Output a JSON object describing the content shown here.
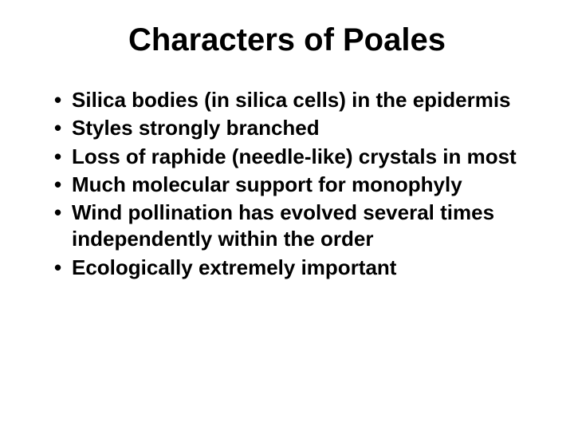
{
  "slide": {
    "title": "Characters of Poales",
    "title_fontsize": 40,
    "bullets": [
      "Silica bodies (in silica cells) in the epidermis",
      "Styles strongly branched",
      "Loss of raphide (needle-like) crystals in most",
      "Much molecular support for monophyly",
      "Wind pollination has evolved several times independently within the order",
      "Ecologically extremely important"
    ],
    "bullet_fontsize": 26,
    "bullet_line_height": 1.28,
    "text_color": "#000000",
    "background_color": "#ffffff"
  }
}
